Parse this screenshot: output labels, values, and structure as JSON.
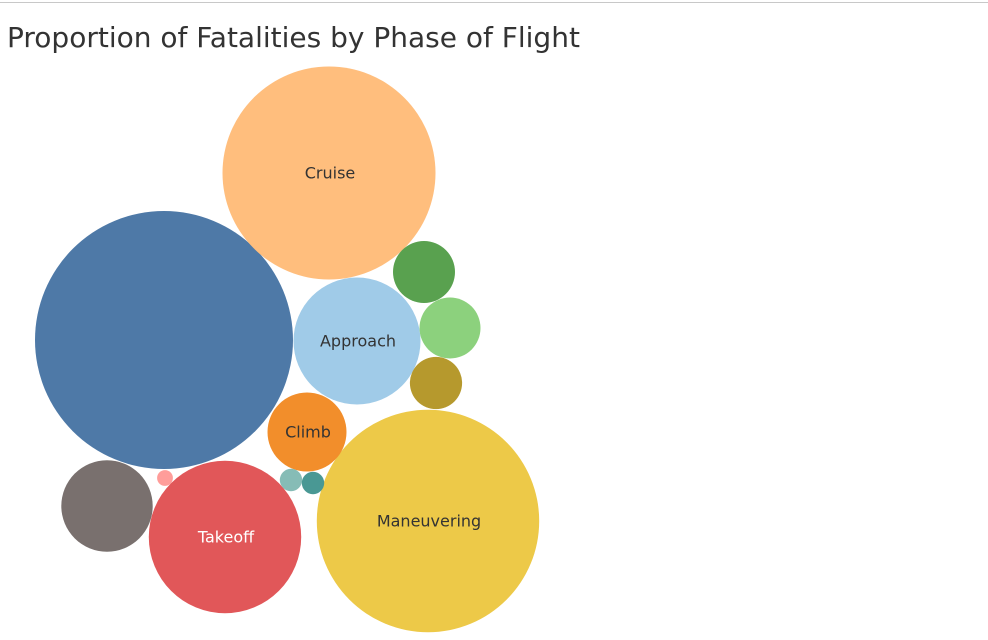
{
  "title": "Proportion of Fatalities by Phase of Flight",
  "chart_data": {
    "type": "bubble",
    "title": "Proportion of Fatalities by Phase of Flight",
    "measure": "Fatalities",
    "bubbles": [
      {
        "label": "",
        "value": 66,
        "color": "#4e79a7"
      },
      {
        "label": "Maneuvering",
        "value": 49,
        "color": "#edc948"
      },
      {
        "label": "Cruise",
        "value": 45,
        "color": "#ffbe7d"
      },
      {
        "label": "Takeoff",
        "value": 23,
        "color": "#e15759"
      },
      {
        "label": "Approach",
        "value": 16,
        "color": "#a0cbe8"
      },
      {
        "label": "",
        "value": 8.3,
        "color": "#79706e"
      },
      {
        "label": "Climb",
        "value": 6.2,
        "color": "#f28e2b"
      },
      {
        "label": "",
        "value": 3.8,
        "color": "#59a14f"
      },
      {
        "label": "",
        "value": 3.7,
        "color": "#8cd17d"
      },
      {
        "label": "",
        "value": 2.7,
        "color": "#b6992d"
      },
      {
        "label": "",
        "value": 0.5,
        "color": "#86bcb6"
      },
      {
        "label": "",
        "value": 0.5,
        "color": "#499894"
      },
      {
        "label": "",
        "value": 0.25,
        "color": "#ff9d9a"
      }
    ]
  }
}
